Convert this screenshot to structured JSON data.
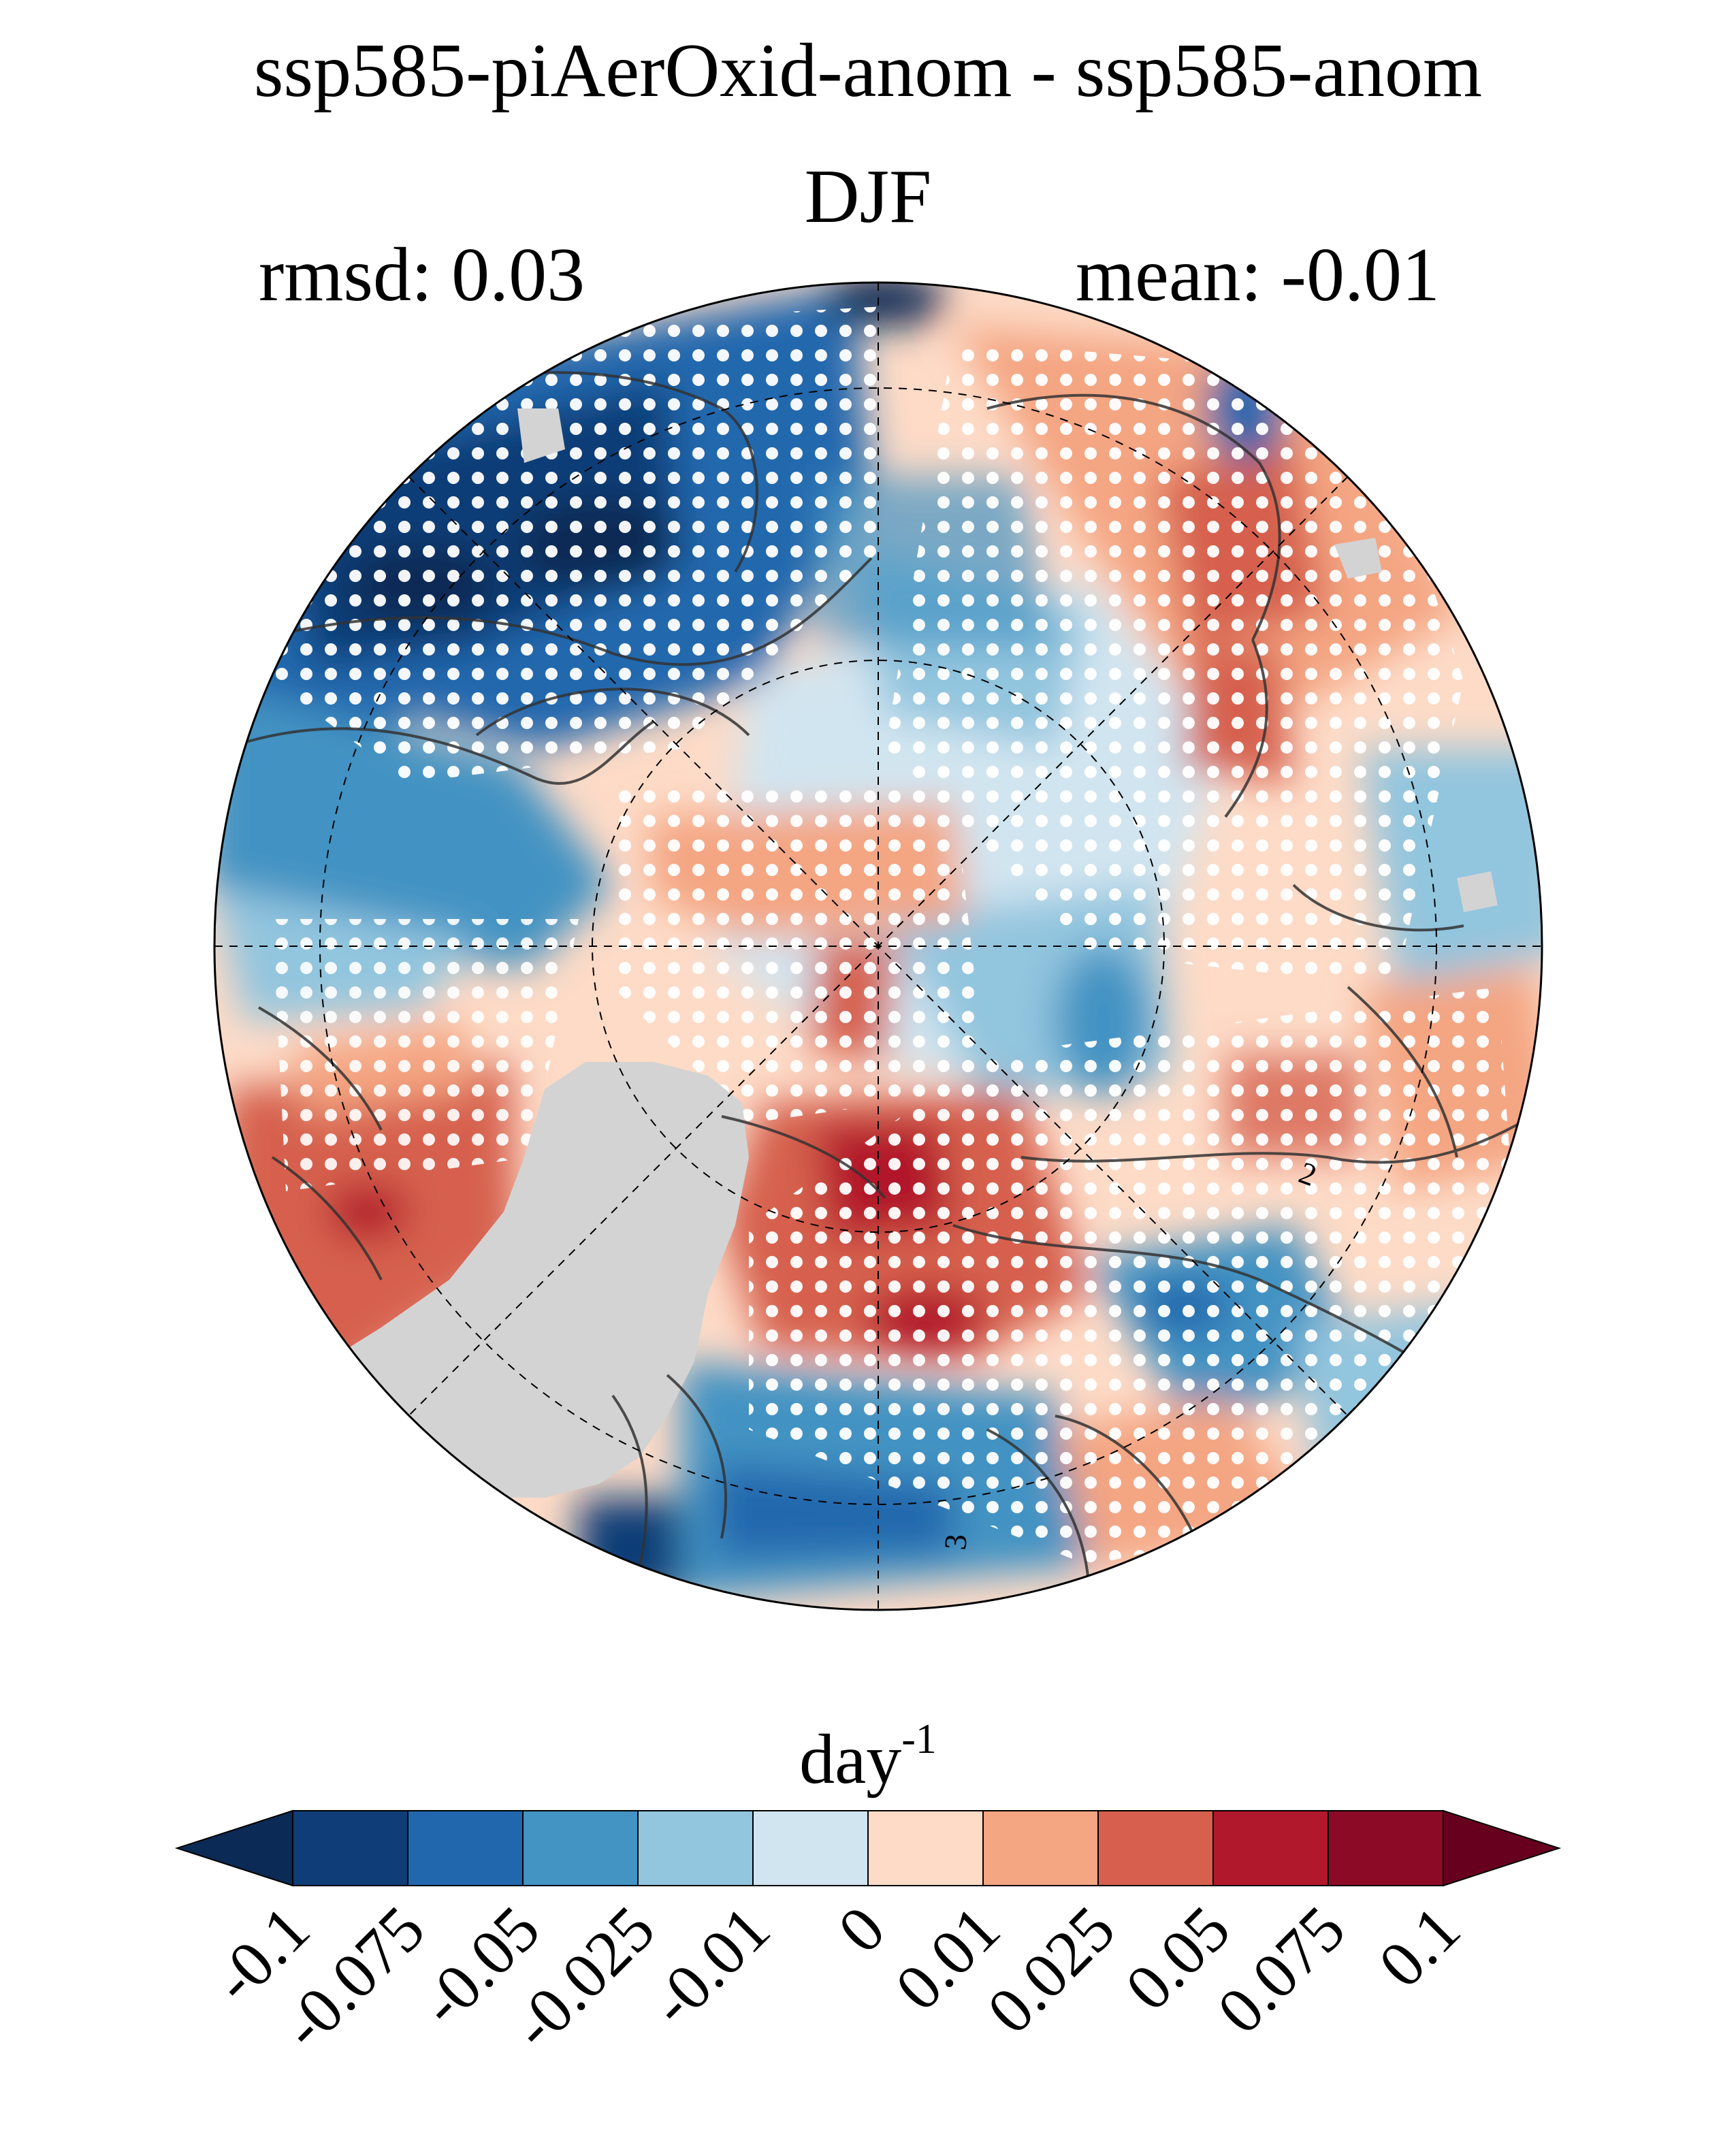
{
  "title": "ssp585-piAerOxid-anom - ssp585-anom",
  "season": "DJF",
  "rmsd_label": "rmsd: 0.03",
  "mean_label": "mean: -0.01",
  "colorbar": {
    "units_base": "day",
    "units_exp": "-1",
    "tick_labels": [
      "-0.1",
      "-0.075",
      "-0.05",
      "-0.025",
      "-0.01",
      "0",
      "0.01",
      "0.025",
      "0.05",
      "0.075",
      "0.1"
    ],
    "colors": [
      "#0b2a55",
      "#0f3d77",
      "#2167ad",
      "#4393c3",
      "#92c5de",
      "#d1e5f0",
      "#fddbc7",
      "#f4a582",
      "#d6604d",
      "#b2182b",
      "#8c0a26",
      "#67001f"
    ],
    "extend": "both"
  },
  "contour_labels": [
    "2",
    "3"
  ],
  "land_mask_color": "#d3d3d3"
}
